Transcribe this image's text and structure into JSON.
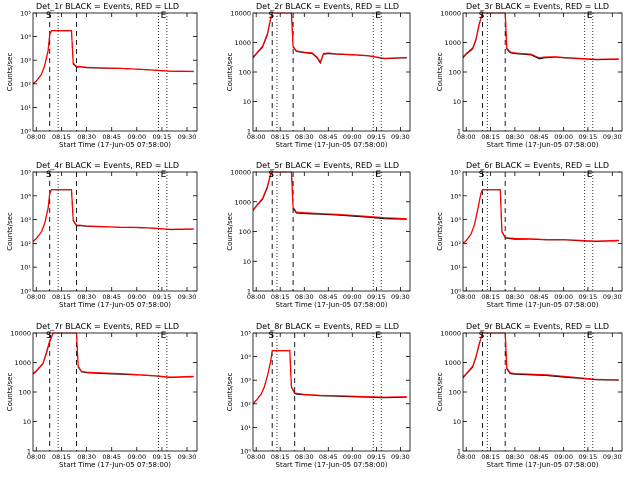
{
  "chart_data": [
    {
      "type": "line",
      "title": "Det_1r BLACK = Events, RED = LLD",
      "markers": [
        "S",
        "E"
      ],
      "xlabel": "Start Time (17-Jun-05 07:58:00)",
      "ylabel": "Counts/sec",
      "yscale": "log",
      "ylim": [
        1,
        100000
      ],
      "y_ticks": [
        "10⁰",
        "10¹",
        "10²",
        "10³",
        "10⁴",
        "10⁵"
      ],
      "x_ticks": [
        "08:00",
        "08:15",
        "08:30",
        "08:45",
        "09:00",
        "09:15",
        "09:30"
      ],
      "x": [
        "07:58",
        "08:00",
        "08:03",
        "08:05",
        "08:07",
        "08:08",
        "08:09",
        "08:20",
        "08:21",
        "08:22",
        "08:24",
        "08:26",
        "08:30",
        "08:40",
        "08:50",
        "09:00",
        "09:10",
        "09:20",
        "09:34"
      ],
      "series": [
        {
          "color": "#000000",
          "values": [
            100,
            130,
            250,
            600,
            2500,
            12000,
            18000,
            18000,
            18000,
            700,
            500,
            520,
            480,
            460,
            450,
            420,
            380,
            340,
            330
          ]
        },
        {
          "color": "#ff0000",
          "values": [
            100,
            130,
            250,
            600,
            2500,
            12000,
            18000,
            18000,
            18000,
            750,
            540,
            540,
            500,
            470,
            450,
            420,
            380,
            345,
            335
          ]
        }
      ],
      "vlines_dashed": [
        "08:08",
        "08:24"
      ],
      "vlines_dotted": [
        "08:13",
        "09:13",
        "09:18"
      ]
    },
    {
      "type": "line",
      "title": "Det_2r BLACK = Events, RED = LLD",
      "markers": [
        "S",
        "E"
      ],
      "xlabel": "Start Time (17-Jun-05 07:58:00)",
      "ylabel": "Counts/sec",
      "yscale": "log",
      "ylim": [
        1,
        10000
      ],
      "y_ticks": [
        "1",
        "10",
        "100",
        "1000",
        "10000"
      ],
      "x_ticks": [
        "08:00",
        "08:15",
        "08:30",
        "08:45",
        "09:00",
        "09:15",
        "09:30"
      ],
      "x": [
        "07:58",
        "08:00",
        "08:04",
        "08:07",
        "08:09",
        "08:10",
        "08:22",
        "08:23",
        "08:25",
        "08:30",
        "08:35",
        "08:38",
        "08:40",
        "08:42",
        "08:45",
        "08:50",
        "09:00",
        "09:10",
        "09:20",
        "09:34"
      ],
      "series": [
        {
          "color": "#000000",
          "values": [
            300,
            400,
            700,
            1800,
            6000,
            10000,
            10000,
            700,
            500,
            450,
            420,
            300,
            200,
            400,
            420,
            400,
            380,
            350,
            280,
            300
          ]
        },
        {
          "color": "#ff0000",
          "values": [
            320,
            420,
            750,
            2000,
            6500,
            10000,
            10000,
            750,
            520,
            470,
            440,
            320,
            220,
            420,
            440,
            410,
            390,
            360,
            290,
            310
          ]
        }
      ],
      "vlines_dashed": [
        "08:10",
        "08:23"
      ],
      "vlines_dotted": [
        "08:13",
        "09:13",
        "09:18"
      ]
    },
    {
      "type": "line",
      "title": "Det_3r BLACK = Events, RED = LLD",
      "markers": [
        "S",
        "E"
      ],
      "xlabel": "Start Time (17-Jun-05 07:58:00)",
      "ylabel": "Counts/sec",
      "yscale": "log",
      "ylim": [
        1,
        10000
      ],
      "y_ticks": [
        "1",
        "10",
        "100",
        "1000",
        "10000"
      ],
      "x_ticks": [
        "08:00",
        "08:15",
        "08:30",
        "08:45",
        "09:00",
        "09:15",
        "09:30"
      ],
      "x": [
        "07:58",
        "08:00",
        "08:04",
        "08:06",
        "08:08",
        "08:10",
        "08:24",
        "08:25",
        "08:27",
        "08:30",
        "08:40",
        "08:45",
        "08:48",
        "08:55",
        "09:00",
        "09:10",
        "09:20",
        "09:34"
      ],
      "series": [
        {
          "color": "#000000",
          "values": [
            300,
            400,
            600,
            1200,
            4000,
            10000,
            10000,
            600,
            450,
            420,
            380,
            280,
            300,
            320,
            300,
            280,
            260,
            270
          ]
        },
        {
          "color": "#ff0000",
          "values": [
            320,
            420,
            650,
            1300,
            4400,
            10000,
            10000,
            650,
            480,
            440,
            400,
            300,
            320,
            330,
            310,
            290,
            270,
            280
          ]
        }
      ],
      "vlines_dashed": [
        "08:10",
        "08:24"
      ],
      "vlines_dotted": [
        "08:13",
        "09:13",
        "09:18"
      ]
    },
    {
      "type": "line",
      "title": "Det_4r BLACK = Events, RED = LLD",
      "markers": [
        "S",
        "E"
      ],
      "xlabel": "Start Time (17-Jun-05 07:58:00)",
      "ylabel": "Counts/sec",
      "yscale": "log",
      "ylim": [
        1,
        100000
      ],
      "y_ticks": [
        "10⁰",
        "10¹",
        "10²",
        "10³",
        "10⁴",
        "10⁵"
      ],
      "x_ticks": [
        "08:00",
        "08:15",
        "08:30",
        "08:45",
        "09:00",
        "09:15",
        "09:30"
      ],
      "x": [
        "07:58",
        "08:00",
        "08:03",
        "08:05",
        "08:07",
        "08:08",
        "08:09",
        "08:20",
        "08:21",
        "08:22",
        "08:24",
        "08:26",
        "08:30",
        "08:40",
        "08:50",
        "09:00",
        "09:10",
        "09:20",
        "09:34"
      ],
      "series": [
        {
          "color": "#000000",
          "values": [
            120,
            160,
            300,
            700,
            3000,
            12000,
            18000,
            18000,
            18000,
            900,
            550,
            560,
            520,
            500,
            470,
            460,
            430,
            380,
            400
          ]
        },
        {
          "color": "#ff0000",
          "values": [
            120,
            160,
            300,
            700,
            3000,
            12000,
            18000,
            18000,
            18000,
            950,
            580,
            580,
            540,
            510,
            480,
            470,
            440,
            390,
            410
          ]
        }
      ],
      "vlines_dashed": [
        "08:08",
        "08:24"
      ],
      "vlines_dotted": [
        "08:13",
        "09:13",
        "09:18"
      ]
    },
    {
      "type": "line",
      "title": "Det_5r BLACK = Events, RED = LLD",
      "markers": [
        "S",
        "E"
      ],
      "xlabel": "Start Time (17-Jun-05 07:58:00)",
      "ylabel": "Counts/sec",
      "yscale": "log",
      "ylim": [
        1,
        10000
      ],
      "y_ticks": [
        "1",
        "10",
        "100",
        "1000",
        "10000"
      ],
      "x_ticks": [
        "08:00",
        "08:15",
        "08:30",
        "08:45",
        "09:00",
        "09:15",
        "09:30"
      ],
      "x": [
        "07:58",
        "08:00",
        "08:04",
        "08:07",
        "08:09",
        "08:10",
        "08:22",
        "08:23",
        "08:25",
        "08:30",
        "08:40",
        "08:50",
        "09:00",
        "09:10",
        "09:20",
        "09:34"
      ],
      "series": [
        {
          "color": "#000000",
          "values": [
            500,
            700,
            1200,
            3000,
            8000,
            10000,
            10000,
            600,
            420,
            400,
            380,
            360,
            330,
            300,
            270,
            260
          ]
        },
        {
          "color": "#ff0000",
          "values": [
            520,
            720,
            1300,
            3300,
            8500,
            10000,
            10000,
            650,
            450,
            430,
            400,
            380,
            350,
            320,
            290,
            270
          ]
        }
      ],
      "vlines_dashed": [
        "08:10",
        "08:23"
      ],
      "vlines_dotted": [
        "08:13",
        "09:13",
        "09:18"
      ]
    },
    {
      "type": "line",
      "title": "Det_6r BLACK = Events, RED = LLD",
      "markers": [
        "S",
        "E"
      ],
      "xlabel": "Start Time (17-Jun-05 07:58:00)",
      "ylabel": "Counts/sec",
      "yscale": "log",
      "ylim": [
        1,
        100000
      ],
      "y_ticks": [
        "10⁰",
        "10¹",
        "10²",
        "10³",
        "10⁴",
        "10⁵"
      ],
      "x_ticks": [
        "08:00",
        "08:15",
        "08:30",
        "08:45",
        "09:00",
        "09:15",
        "09:30"
      ],
      "x": [
        "07:58",
        "08:00",
        "08:03",
        "08:05",
        "08:07",
        "08:09",
        "08:10",
        "08:20",
        "08:21",
        "08:22",
        "08:24",
        "08:26",
        "08:30",
        "08:40",
        "08:50",
        "09:00",
        "09:10",
        "09:20",
        "09:34"
      ],
      "series": [
        {
          "color": "#000000",
          "values": [
            100,
            130,
            250,
            600,
            2500,
            12000,
            18000,
            18000,
            18000,
            300,
            170,
            160,
            150,
            150,
            140,
            140,
            130,
            120,
            130
          ]
        },
        {
          "color": "#ff0000",
          "values": [
            100,
            130,
            250,
            600,
            2500,
            12000,
            18000,
            18000,
            18000,
            320,
            180,
            170,
            160,
            155,
            145,
            145,
            135,
            125,
            135
          ]
        }
      ],
      "vlines_dashed": [
        "08:10",
        "08:24"
      ],
      "vlines_dotted": [
        "08:13",
        "09:13",
        "09:18"
      ]
    },
    {
      "type": "line",
      "title": "Det_7r BLACK = Events, RED = LLD",
      "markers": [
        "S",
        "E"
      ],
      "xlabel": "Start Time (17-Jun-05 07:58:00)",
      "ylabel": "Counts/sec",
      "yscale": "log",
      "ylim": [
        1,
        10000
      ],
      "y_ticks": [
        "1",
        "10",
        "100",
        "1000",
        "10000"
      ],
      "x_ticks": [
        "08:00",
        "08:15",
        "08:30",
        "08:45",
        "09:00",
        "09:15",
        "09:30"
      ],
      "x": [
        "07:58",
        "08:00",
        "08:04",
        "08:06",
        "08:08",
        "08:10",
        "08:24",
        "08:25",
        "08:27",
        "08:30",
        "08:40",
        "08:50",
        "09:00",
        "09:10",
        "09:20",
        "09:34"
      ],
      "series": [
        {
          "color": "#000000",
          "values": [
            400,
            500,
            900,
            2000,
            5000,
            10000,
            10000,
            700,
            480,
            450,
            420,
            400,
            380,
            350,
            310,
            330
          ]
        },
        {
          "color": "#ff0000",
          "values": [
            420,
            520,
            950,
            2200,
            5500,
            10000,
            10000,
            750,
            500,
            470,
            440,
            420,
            390,
            360,
            320,
            340
          ]
        }
      ],
      "vlines_dashed": [
        "08:08",
        "08:24"
      ],
      "vlines_dotted": [
        "08:13",
        "09:13",
        "09:18"
      ]
    },
    {
      "type": "line",
      "title": "Det_8r BLACK = Events, RED = LLD",
      "markers": [
        "S",
        "E"
      ],
      "xlabel": "Start Time (17-Jun-05 07:58:00)",
      "ylabel": "Counts/sec",
      "yscale": "log",
      "ylim": [
        1,
        100000
      ],
      "y_ticks": [
        "10⁰",
        "10¹",
        "10²",
        "10³",
        "10⁴",
        "10⁵"
      ],
      "x_ticks": [
        "08:00",
        "08:15",
        "08:30",
        "08:45",
        "09:00",
        "09:15",
        "09:30"
      ],
      "x": [
        "07:58",
        "08:00",
        "08:03",
        "08:05",
        "08:07",
        "08:09",
        "08:10",
        "08:20",
        "08:21",
        "08:22",
        "08:24",
        "08:26",
        "08:30",
        "08:40",
        "08:50",
        "09:00",
        "09:10",
        "09:20",
        "09:34"
      ],
      "series": [
        {
          "color": "#000000",
          "values": [
            100,
            140,
            250,
            500,
            1500,
            6000,
            18000,
            18000,
            18000,
            500,
            270,
            250,
            240,
            220,
            210,
            200,
            190,
            180,
            190
          ]
        },
        {
          "color": "#ff0000",
          "values": [
            100,
            140,
            250,
            500,
            1500,
            6000,
            18000,
            18000,
            18000,
            540,
            290,
            270,
            250,
            230,
            220,
            210,
            200,
            190,
            200
          ]
        }
      ],
      "vlines_dashed": [
        "08:10",
        "08:24"
      ],
      "vlines_dotted": [
        "08:13",
        "09:13",
        "09:18"
      ]
    },
    {
      "type": "line",
      "title": "Det_9r BLACK = Events, RED = LLD",
      "markers": [
        "S",
        "E"
      ],
      "xlabel": "Start Time (17-Jun-05 07:58:00)",
      "ylabel": "Counts/sec",
      "yscale": "log",
      "ylim": [
        1,
        10000
      ],
      "y_ticks": [
        "1",
        "10",
        "100",
        "1000",
        "10000"
      ],
      "x_ticks": [
        "08:00",
        "08:15",
        "08:30",
        "08:45",
        "09:00",
        "09:15",
        "09:30"
      ],
      "x": [
        "07:58",
        "08:00",
        "08:04",
        "08:06",
        "08:08",
        "08:10",
        "08:24",
        "08:25",
        "08:27",
        "08:30",
        "08:40",
        "08:50",
        "09:00",
        "09:10",
        "09:20",
        "09:34"
      ],
      "series": [
        {
          "color": "#000000",
          "values": [
            300,
            400,
            700,
            1500,
            4000,
            10000,
            10000,
            600,
            420,
            400,
            380,
            360,
            320,
            290,
            260,
            250
          ]
        },
        {
          "color": "#ff0000",
          "values": [
            320,
            420,
            750,
            1600,
            4400,
            10000,
            10000,
            650,
            450,
            420,
            400,
            380,
            340,
            300,
            270,
            260
          ]
        }
      ],
      "vlines_dashed": [
        "08:10",
        "08:24"
      ],
      "vlines_dotted": [
        "08:13",
        "09:13",
        "09:18"
      ]
    }
  ]
}
